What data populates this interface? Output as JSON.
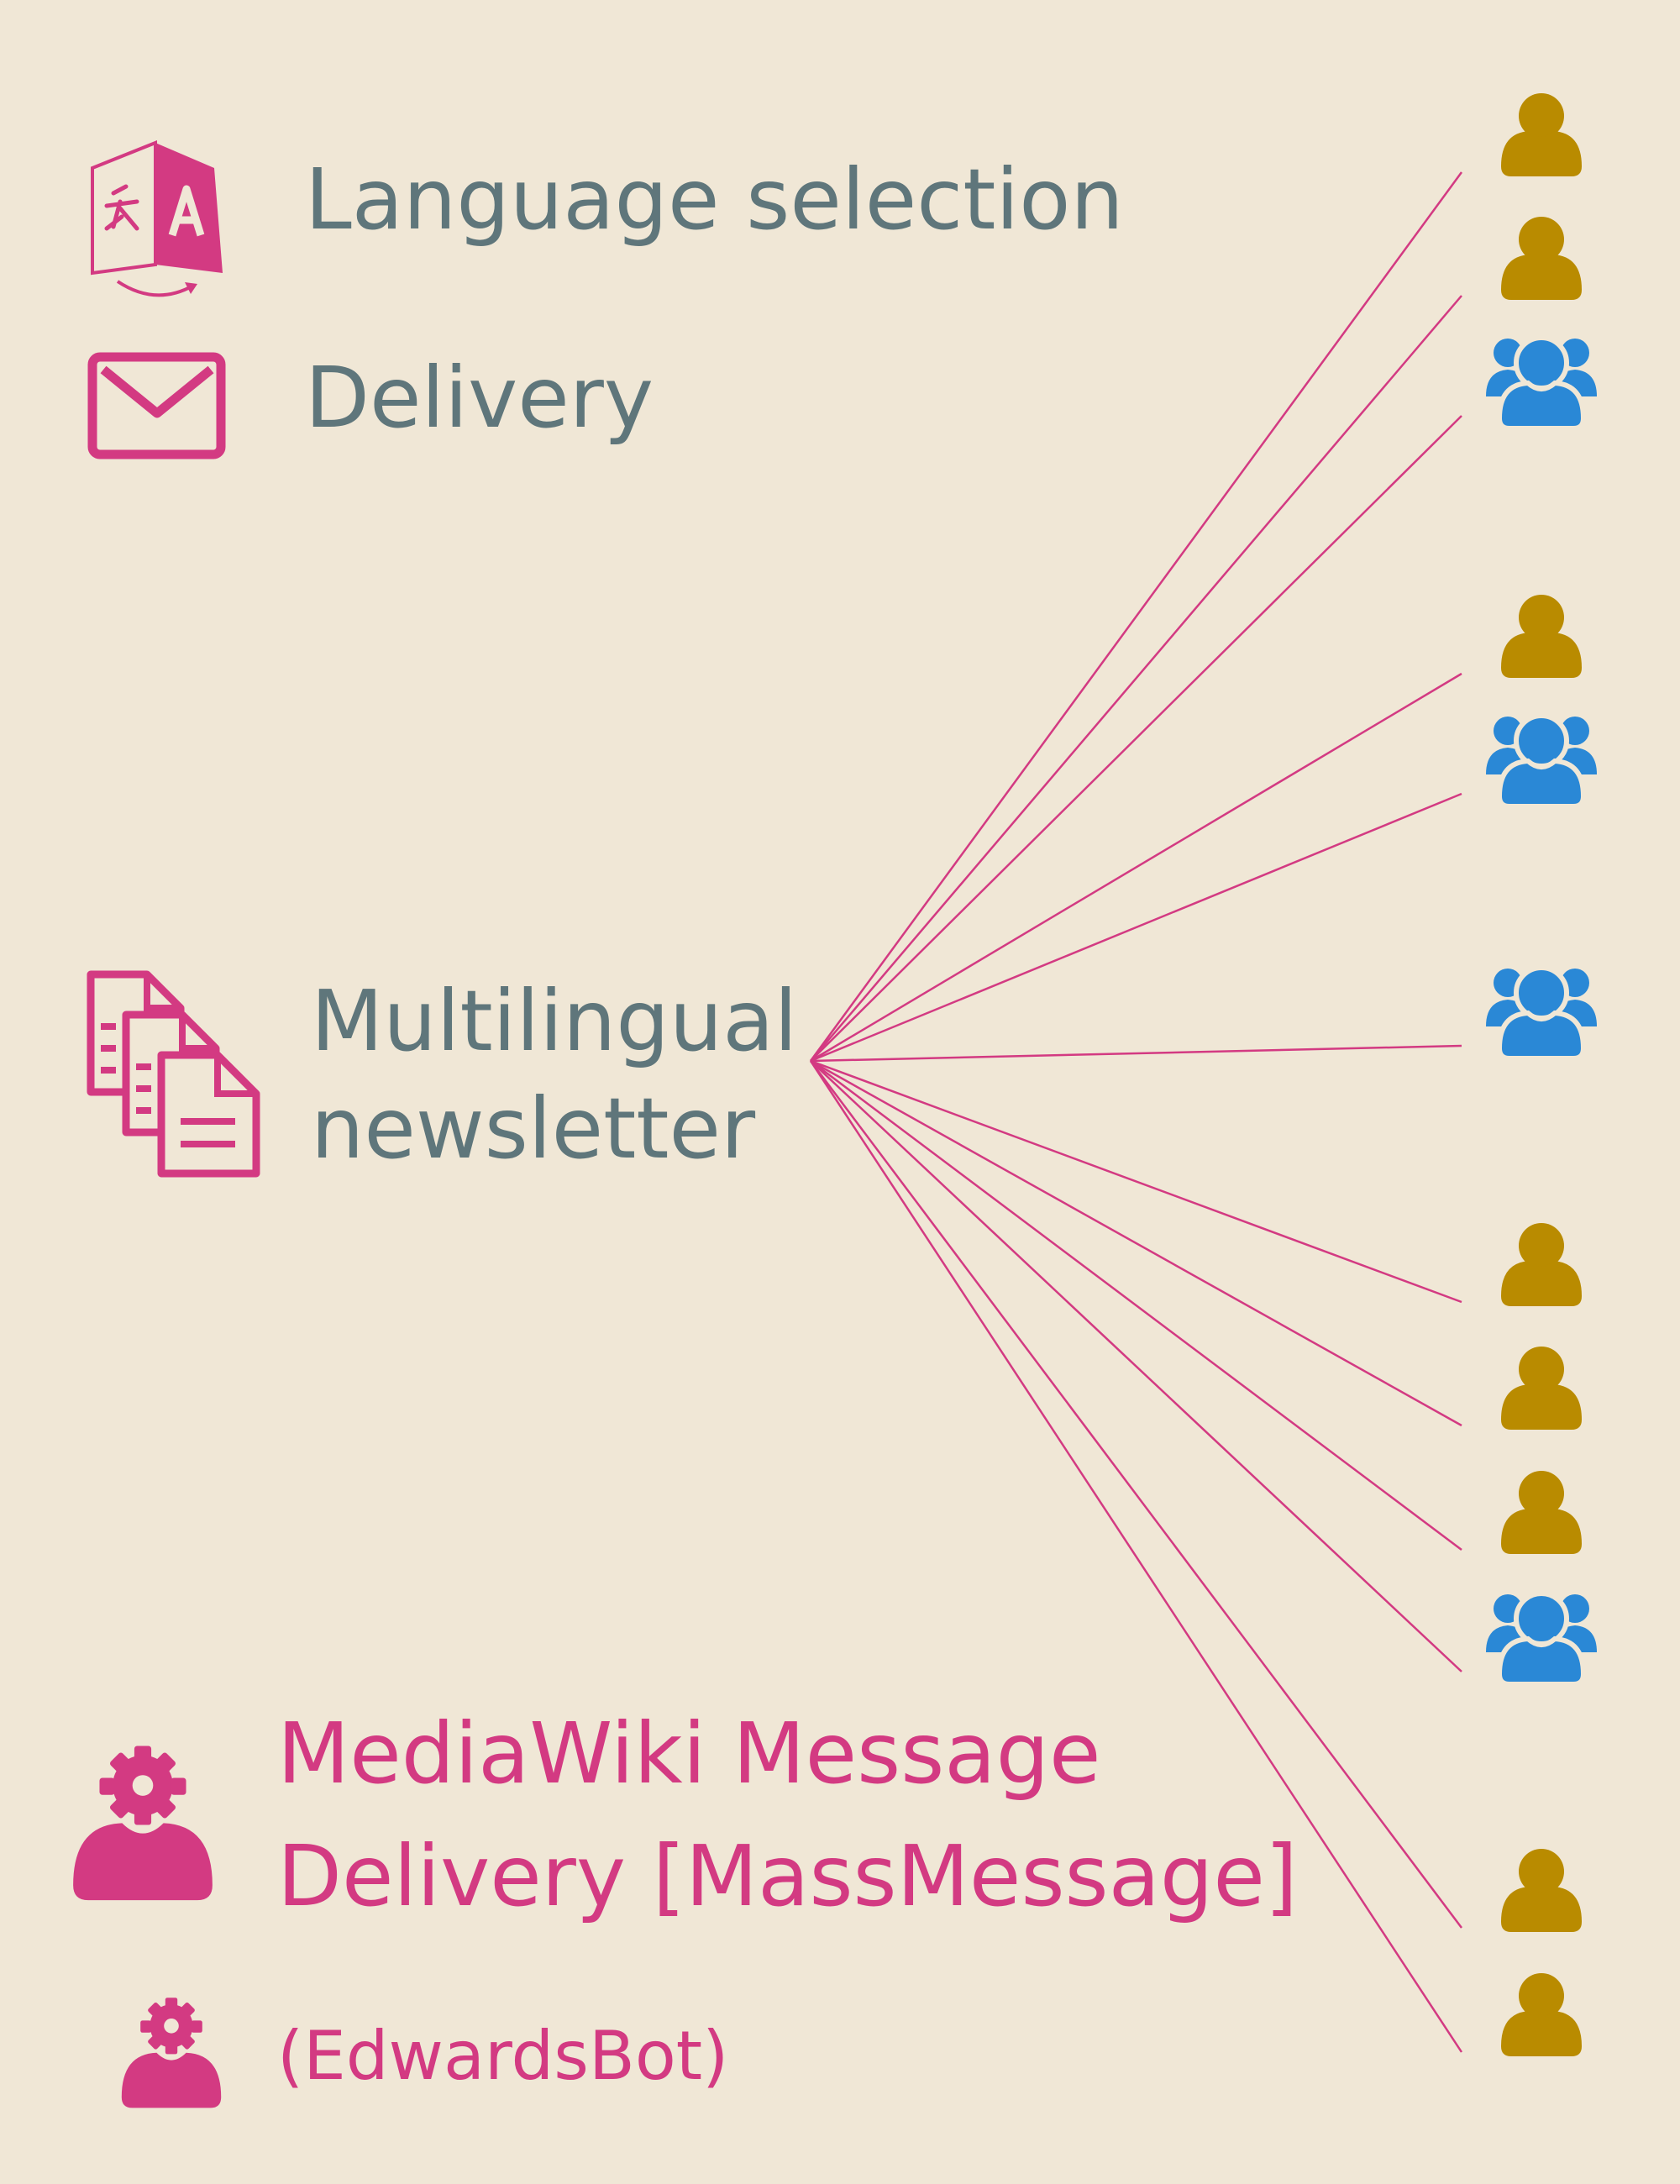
{
  "colors": {
    "background": "#f0e7d6",
    "text": "#5f767b",
    "accent": "#d33a82",
    "user": "#b98b00",
    "group": "#2a88d6"
  },
  "legend": {
    "language_selection": {
      "icon": "translate-icon",
      "label": "Language selection"
    },
    "delivery": {
      "icon": "envelope-icon",
      "label": "Delivery"
    }
  },
  "source": {
    "icon": "documents-icon",
    "label_line1": "Multilingual",
    "label_line2": "newsletter"
  },
  "bot": {
    "icon": "bot-user-icon",
    "label_line1": "MediaWiki Message",
    "label_line2": "Delivery [MassMessage]",
    "alias": "(EdwardsBot)"
  },
  "recipients": [
    {
      "kind": "user",
      "icon": "user-icon"
    },
    {
      "kind": "user",
      "icon": "user-icon"
    },
    {
      "kind": "group",
      "icon": "user-group-icon"
    },
    {
      "kind": "user",
      "icon": "user-icon"
    },
    {
      "kind": "group",
      "icon": "user-group-icon"
    },
    {
      "kind": "group",
      "icon": "user-group-icon"
    },
    {
      "kind": "user",
      "icon": "user-icon"
    },
    {
      "kind": "user",
      "icon": "user-icon"
    },
    {
      "kind": "user",
      "icon": "user-icon"
    },
    {
      "kind": "group",
      "icon": "user-group-icon"
    },
    {
      "kind": "user",
      "icon": "user-icon"
    },
    {
      "kind": "user",
      "icon": "user-icon"
    }
  ]
}
